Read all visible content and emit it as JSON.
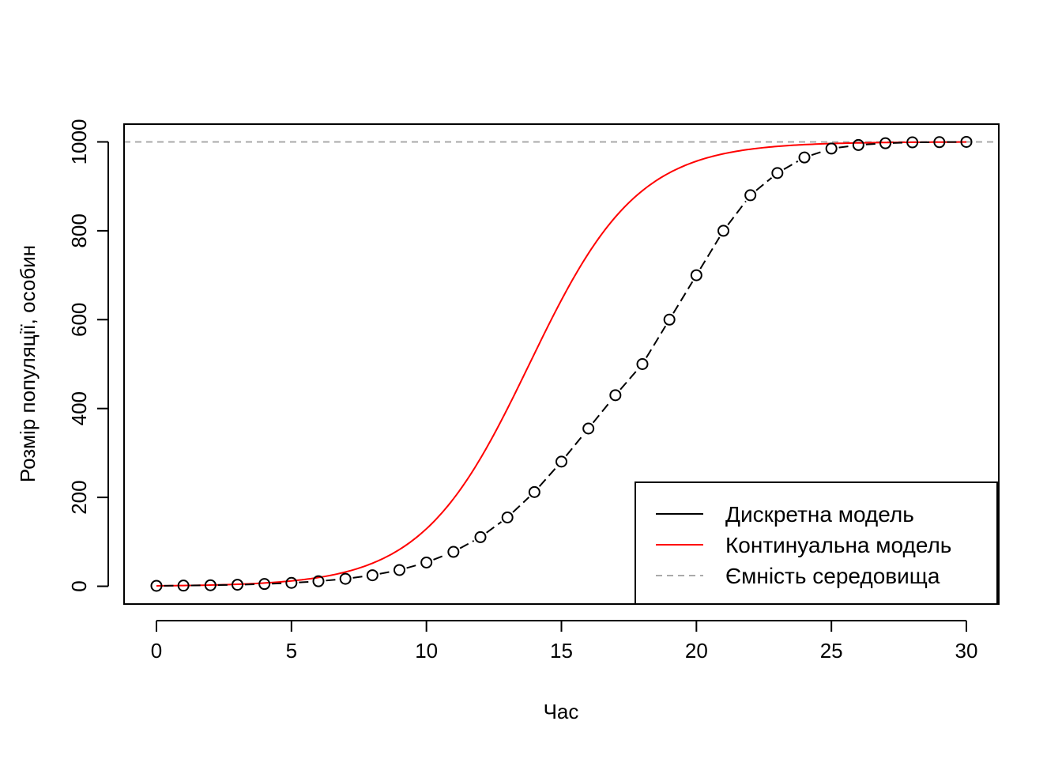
{
  "chart_data": {
    "type": "line",
    "xlabel": "Час",
    "ylabel": "Розмір популяції, особин",
    "xlim": [
      -1.2,
      31.2
    ],
    "ylim": [
      -40,
      1040
    ],
    "x_ticks": [
      0,
      5,
      10,
      15,
      20,
      25,
      30
    ],
    "y_ticks": [
      0,
      200,
      400,
      600,
      800,
      1000
    ],
    "x_tick_labels": [
      "0",
      "5",
      "10",
      "15",
      "20",
      "25",
      "30"
    ],
    "y_tick_labels": [
      "0",
      "200",
      "400",
      "600",
      "800",
      "1000"
    ],
    "grid": false,
    "legend_position": "bottom-right",
    "legend": [
      {
        "label": "Дискретна модель",
        "color": "#000000",
        "style": "solid"
      },
      {
        "label": "Континуальна модель",
        "color": "#ff0000",
        "style": "solid"
      },
      {
        "label": "Ємність середовища",
        "color": "#aaaaaa",
        "style": "dashed"
      }
    ],
    "series": [
      {
        "name": "Дискретна модель",
        "color": "#000000",
        "marker": "open-circle",
        "line": "dashed",
        "x": [
          0,
          1,
          2,
          3,
          4,
          5,
          6,
          7,
          8,
          9,
          10,
          11,
          12,
          13,
          14,
          15,
          16,
          17,
          18,
          19,
          20,
          21,
          22,
          23,
          24,
          25,
          26,
          27,
          28,
          29,
          30
        ],
        "y": [
          1,
          1.5,
          2.3,
          3.4,
          5.1,
          7.6,
          11.3,
          16.8,
          24.8,
          36.6,
          53.5,
          77.4,
          110.5,
          154.9,
          212,
          280.5,
          355,
          430,
          500,
          600,
          700,
          800,
          880,
          930,
          965,
          985,
          993,
          997,
          999,
          999.5,
          1000
        ]
      },
      {
        "name": "Континуальна модель",
        "color": "#ff0000",
        "line": "solid",
        "K": 1000,
        "N0": 1,
        "r": 0.5
      },
      {
        "name": "Ємність середовища",
        "color": "#aaaaaa",
        "line": "dashed",
        "y": 1000
      }
    ]
  }
}
